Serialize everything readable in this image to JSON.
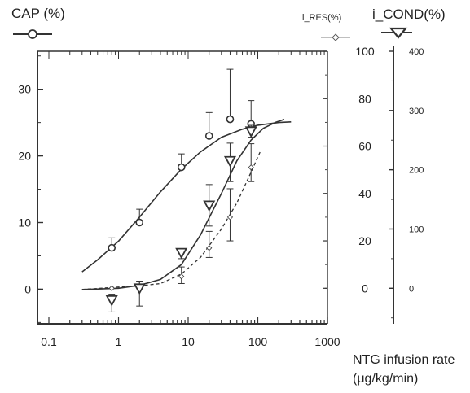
{
  "chart_data": {
    "type": "line",
    "xlabel": "NTG infusion rate",
    "xlabel_unit": "(μg/kg/min)",
    "x_scale": "log",
    "xlim": [
      0.1,
      1000
    ],
    "x_ticks": [
      "0.1",
      "1",
      "10",
      "100",
      "1000"
    ],
    "axes": {
      "cap": {
        "label": "CAP (%)",
        "ticks": [
          "0",
          "10",
          "20",
          "30"
        ],
        "ylim": [
          -5.2,
          35.7
        ]
      },
      "res": {
        "label": "i_RES(%)",
        "ticks": [
          "0",
          "20",
          "40",
          "60",
          "80",
          "100"
        ],
        "ylim": [
          -15,
          100
        ]
      },
      "cond": {
        "label": "i_COND(%)",
        "ticks": [
          "0",
          "100",
          "200",
          "300",
          "400"
        ],
        "ylim": [
          -60,
          400
        ]
      }
    },
    "series": [
      {
        "axis": "cap",
        "marker": "circle",
        "x": [
          0.8,
          2,
          8,
          20,
          40,
          80
        ],
        "y": [
          6.2,
          10.0,
          18.3,
          23.0,
          25.5,
          24.8
        ],
        "err_plus": [
          1.5,
          2.0,
          2.0,
          3.5,
          7.5,
          3.5
        ],
        "fit_x": [
          0.3,
          0.5,
          1,
          2,
          4,
          8,
          15,
          30,
          60,
          100,
          200,
          300
        ],
        "fit_y": [
          2.6,
          4.4,
          7.2,
          10.8,
          14.6,
          18.0,
          20.6,
          22.8,
          24.0,
          24.6,
          25.0,
          25.1
        ]
      },
      {
        "axis": "res",
        "marker": "diamond",
        "x": [
          0.8,
          2,
          8,
          20,
          40,
          80
        ],
        "y": [
          0,
          0,
          5,
          17,
          30,
          51
        ],
        "err_plus": [
          0,
          3,
          4,
          7,
          12,
          10
        ],
        "err_minus": [
          0,
          0,
          3,
          4,
          10,
          6
        ],
        "fit_x": [
          0.3,
          1,
          2,
          4,
          8,
          15,
          30,
          50,
          80,
          110
        ],
        "fit_y": [
          -0.5,
          0.5,
          1,
          2,
          6,
          13,
          25,
          36,
          49,
          58
        ]
      },
      {
        "axis": "cond",
        "marker": "triangle-down",
        "x": [
          0.8,
          2,
          8,
          20,
          40,
          80
        ],
        "y": [
          -20,
          0,
          60,
          140,
          215,
          265
        ],
        "err_plus": [
          10,
          12,
          5,
          35,
          30,
          10
        ],
        "err_minus": [
          20,
          30,
          10,
          35,
          35,
          10
        ],
        "fit_x": [
          0.3,
          1,
          2,
          4,
          8,
          15,
          30,
          50,
          80,
          120,
          180,
          240
        ],
        "fit_y": [
          -2,
          0,
          5,
          15,
          40,
          90,
          160,
          215,
          250,
          270,
          280,
          285
        ]
      }
    ]
  }
}
